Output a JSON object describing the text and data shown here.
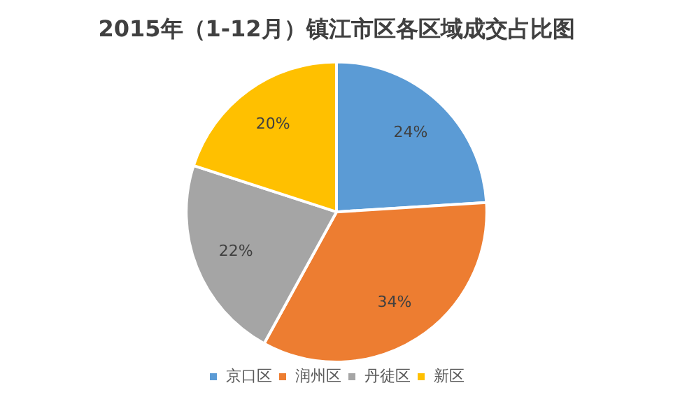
{
  "chart_data": {
    "type": "pie",
    "title": "2015年（1-12月）镇江市区各区域成交占比图",
    "categories": [
      "京口区",
      "润州区",
      "丹徒区",
      "新区"
    ],
    "values": [
      24,
      34,
      22,
      20
    ],
    "colors": [
      "#5b9bd5",
      "#ed7d31",
      "#a5a5a5",
      "#ffc000"
    ],
    "value_labels": [
      "24%",
      "34%",
      "22%",
      "20%"
    ],
    "legend": "bottom"
  }
}
